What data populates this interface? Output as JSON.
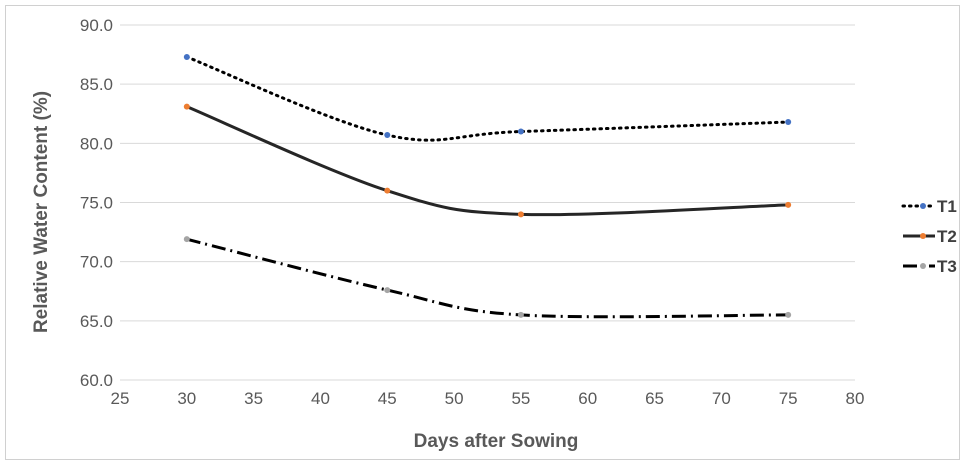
{
  "chart_data": {
    "type": "line",
    "xlabel": "Days after Sowing",
    "ylabel": "Relative Water Content (%)",
    "xlim": [
      25,
      80
    ],
    "ylim": [
      60,
      90
    ],
    "x_ticks": [
      "25",
      "30",
      "35",
      "40",
      "45",
      "50",
      "55",
      "60",
      "65",
      "70",
      "75",
      "80"
    ],
    "y_ticks": [
      "60.0",
      "65.0",
      "70.0",
      "75.0",
      "80.0",
      "85.0",
      "90.0"
    ],
    "grid": "horizontal",
    "legend_position": "right",
    "x": [
      30,
      45,
      55,
      75
    ],
    "series": [
      {
        "name": "T1",
        "values": [
          87.3,
          80.7,
          81.0,
          81.8
        ],
        "line_color": "#000000",
        "line_style": "dotted",
        "marker_color": "#4472C4"
      },
      {
        "name": "T2",
        "values": [
          83.1,
          76.0,
          74.0,
          74.8
        ],
        "line_color": "#262626",
        "line_style": "solid",
        "marker_color": "#ED7D31"
      },
      {
        "name": "T3",
        "values": [
          71.9,
          67.6,
          65.5,
          65.5
        ],
        "line_color": "#000000",
        "line_style": "dashdot",
        "marker_color": "#A5A5A5"
      }
    ]
  }
}
